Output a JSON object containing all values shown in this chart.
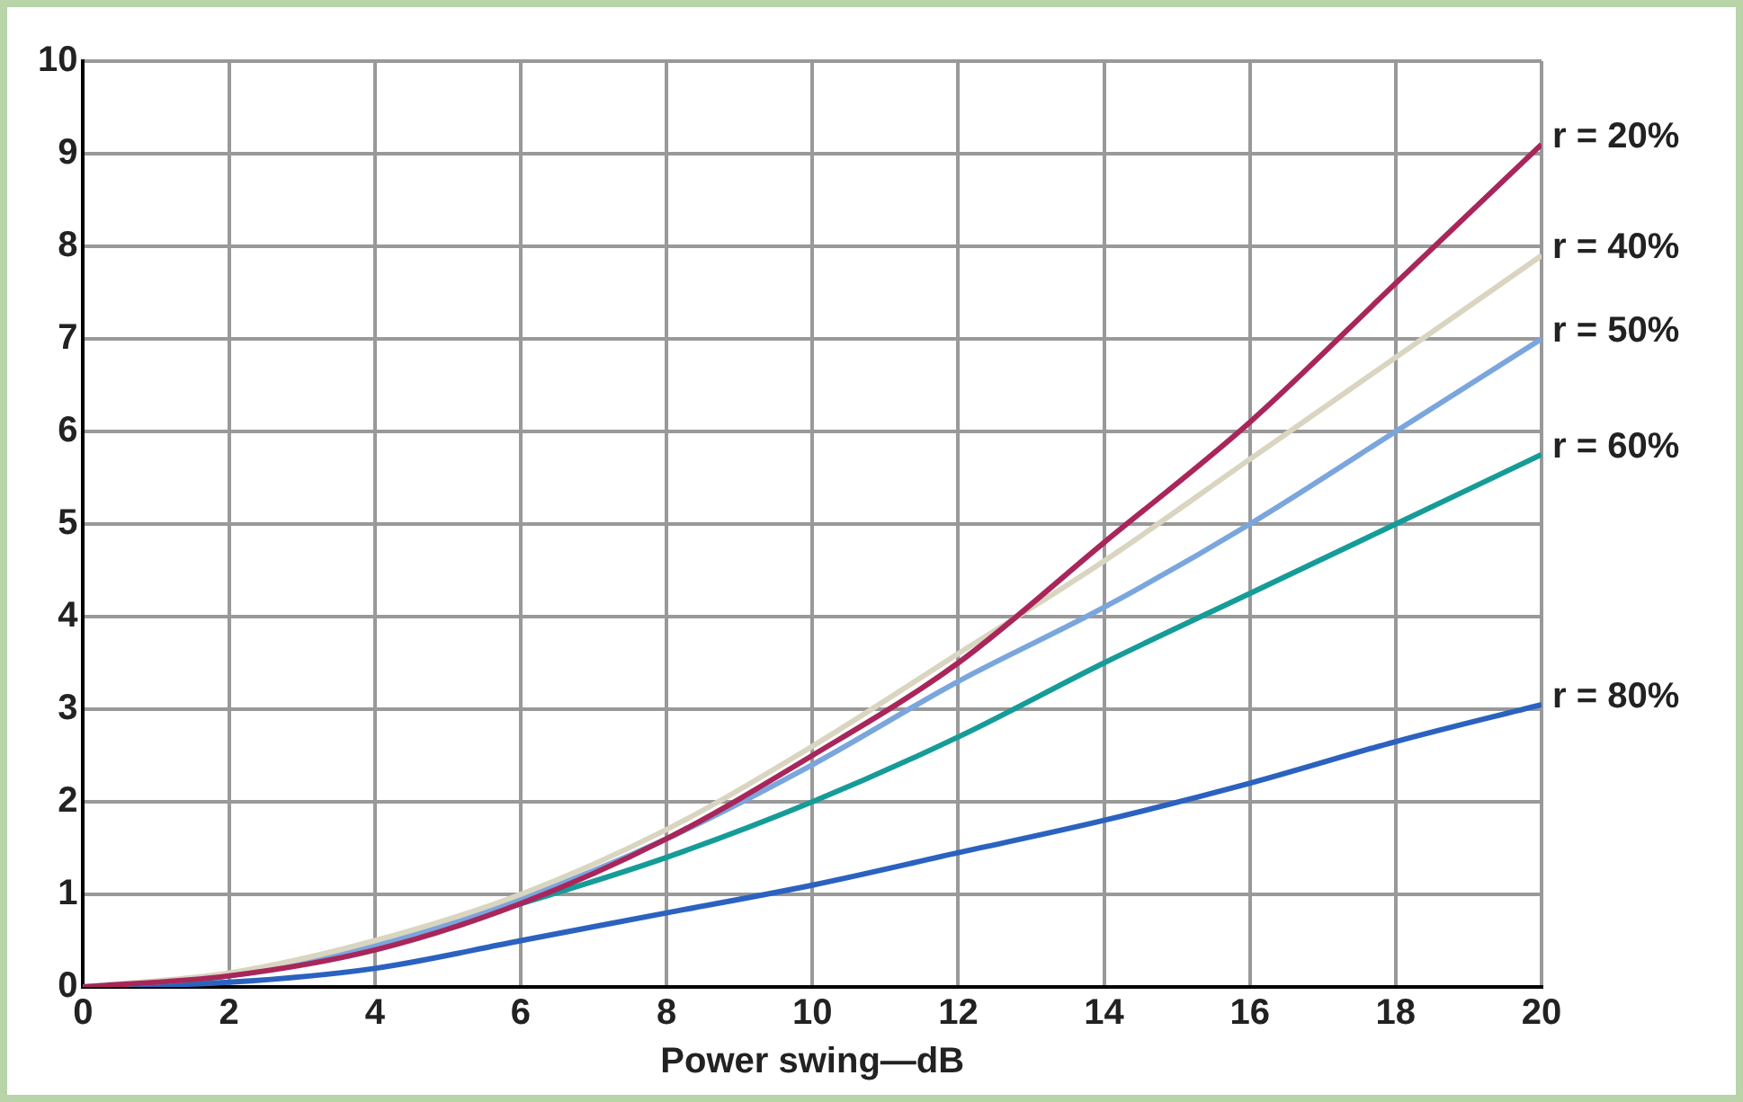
{
  "chart_data": {
    "type": "line",
    "xlabel": "Power swing—dB",
    "x": [
      0,
      2,
      4,
      6,
      8,
      10,
      12,
      14,
      16,
      18,
      20
    ],
    "xlim": [
      0,
      20
    ],
    "xticks": [
      0,
      2,
      4,
      6,
      8,
      10,
      12,
      14,
      16,
      18,
      20
    ],
    "ylim": [
      0,
      10
    ],
    "yticks": [
      0,
      1,
      2,
      3,
      4,
      5,
      6,
      7,
      8,
      9,
      10
    ],
    "grid": true,
    "legend": false,
    "marker": "none",
    "line_style": "solid",
    "series": [
      {
        "name": "r = 20%",
        "color": "#a8265a",
        "values": [
          0,
          0.12,
          0.4,
          0.9,
          1.6,
          2.5,
          3.5,
          4.8,
          6.1,
          7.6,
          9.1
        ]
      },
      {
        "name": "r = 40%",
        "color": "#d9d5c0",
        "values": [
          0,
          0.15,
          0.5,
          1.0,
          1.7,
          2.6,
          3.6,
          4.6,
          5.7,
          6.8,
          7.9
        ]
      },
      {
        "name": "r = 50%",
        "color": "#7aa6dd",
        "values": [
          0,
          0.13,
          0.45,
          0.95,
          1.6,
          2.4,
          3.3,
          4.1,
          5.0,
          6.0,
          7.0
        ]
      },
      {
        "name": "r = 60%",
        "color": "#169c98",
        "values": [
          0,
          0.12,
          0.45,
          0.9,
          1.4,
          2.0,
          2.7,
          3.5,
          4.25,
          5.0,
          5.75
        ]
      },
      {
        "name": "r = 80%",
        "color": "#2b62c0",
        "values": [
          0,
          0.05,
          0.2,
          0.5,
          0.8,
          1.1,
          1.45,
          1.8,
          2.2,
          2.65,
          3.05
        ]
      }
    ]
  }
}
